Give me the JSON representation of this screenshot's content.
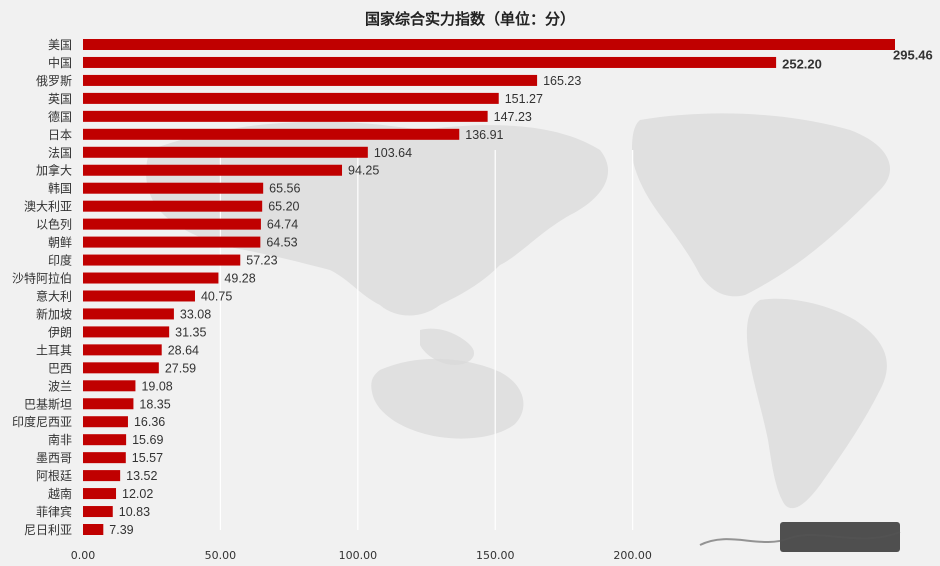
{
  "chart_data": {
    "type": "bar",
    "orientation": "horizontal",
    "title": "国家综合实力指数（单位：分）",
    "categories": [
      "美国",
      "中国",
      "俄罗斯",
      "英国",
      "德国",
      "日本",
      "法国",
      "加拿大",
      "韩国",
      "澳大利亚",
      "以色列",
      "朝鲜",
      "印度",
      "沙特阿拉伯",
      "意大利",
      "新加坡",
      "伊朗",
      "土耳其",
      "巴西",
      "波兰",
      "巴基斯坦",
      "印度尼西亚",
      "南非",
      "墨西哥",
      "阿根廷",
      "越南",
      "菲律宾",
      "尼日利亚"
    ],
    "values": [
      295.46,
      252.2,
      165.23,
      151.27,
      147.23,
      136.91,
      103.64,
      94.25,
      65.56,
      65.2,
      64.74,
      64.53,
      57.23,
      49.28,
      40.75,
      33.08,
      31.35,
      28.64,
      27.59,
      19.08,
      18.35,
      16.36,
      15.69,
      15.57,
      13.52,
      12.02,
      10.83,
      7.39
    ],
    "value_labels": [
      "295.46",
      "252.20",
      "165.23",
      "151.27",
      "147.23",
      "136.91",
      "103.64",
      "94.25",
      "65.56",
      "65.20",
      "64.74",
      "64.53",
      "57.23",
      "49.28",
      "40.75",
      "33.08",
      "31.35",
      "28.64",
      "27.59",
      "19.08",
      "18.35",
      "16.36",
      "15.69",
      "15.57",
      "13.52",
      "12.02",
      "10.83",
      "7.39"
    ],
    "x_ticks": [
      0,
      50,
      100,
      150,
      200
    ],
    "x_tick_labels": [
      "0.00",
      "50.00",
      "100.00",
      "150.00",
      "200.00"
    ],
    "xlim": [
      0,
      300
    ],
    "xlabel": "",
    "ylabel": "",
    "grid": true,
    "legend": "none",
    "bar_color": "#c00000",
    "background": "#f1f1f1"
  }
}
